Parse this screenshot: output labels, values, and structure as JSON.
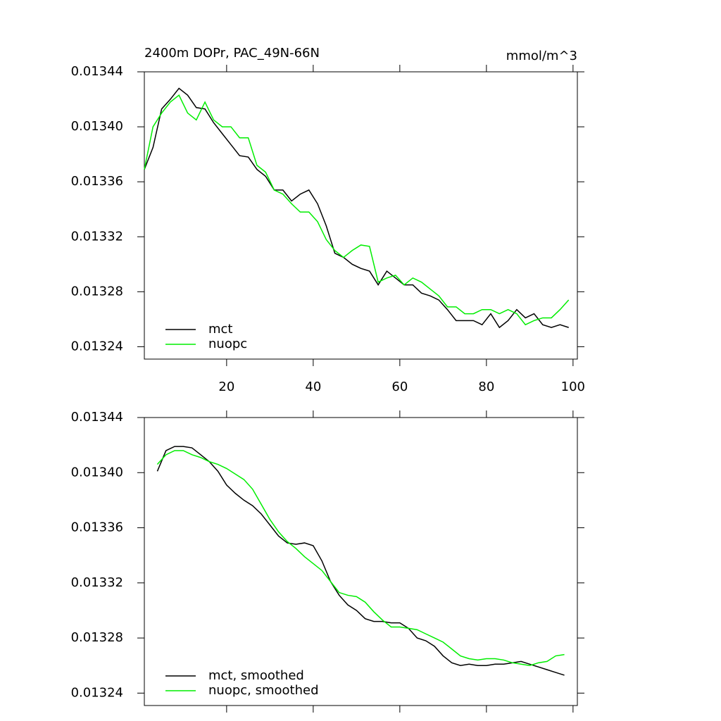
{
  "chart_data": [
    {
      "type": "line",
      "title": "2400m DOPr, PAC_49N-66N",
      "units": "mmol/m^3",
      "x": [
        1,
        3,
        5,
        7,
        9,
        11,
        13,
        15,
        17,
        19,
        21,
        23,
        25,
        27,
        29,
        31,
        33,
        35,
        37,
        39,
        41,
        43,
        45,
        47,
        49,
        51,
        53,
        55,
        57,
        59,
        61,
        63,
        65,
        67,
        69,
        71,
        73,
        75,
        77,
        79,
        81,
        83,
        85,
        87,
        89,
        91,
        93,
        95,
        97,
        99
      ],
      "series": [
        {
          "name": "mct",
          "color": "#000000",
          "values": [
            0.013369,
            0.013385,
            0.013413,
            0.01342,
            0.013428,
            0.013423,
            0.013414,
            0.013413,
            0.013403,
            0.013395,
            0.013387,
            0.013379,
            0.013378,
            0.013369,
            0.013364,
            0.013354,
            0.013354,
            0.013346,
            0.013351,
            0.013354,
            0.013344,
            0.013328,
            0.013308,
            0.013305,
            0.0133,
            0.013297,
            0.013295,
            0.013285,
            0.013295,
            0.01329,
            0.013285,
            0.013285,
            0.013279,
            0.013277,
            0.013274,
            0.013267,
            0.013259,
            0.013259,
            0.013259,
            0.013256,
            0.013264,
            0.013254,
            0.013259,
            0.013267,
            0.013261,
            0.013264,
            0.013256,
            0.013254,
            0.013256,
            0.013254
          ]
        },
        {
          "name": "nuopc",
          "color": "#00ee00",
          "values": [
            0.013369,
            0.0134,
            0.01341,
            0.013418,
            0.013423,
            0.01341,
            0.013405,
            0.013418,
            0.013405,
            0.0134,
            0.0134,
            0.013392,
            0.013392,
            0.013372,
            0.013367,
            0.013354,
            0.013351,
            0.013344,
            0.013338,
            0.013338,
            0.013331,
            0.013318,
            0.01331,
            0.013305,
            0.01331,
            0.013314,
            0.013313,
            0.013287,
            0.01329,
            0.013292,
            0.013285,
            0.01329,
            0.013287,
            0.013282,
            0.013277,
            0.013269,
            0.013269,
            0.013264,
            0.013264,
            0.013267,
            0.013267,
            0.013264,
            0.013267,
            0.013264,
            0.013256,
            0.013259,
            0.013261,
            0.013261,
            0.013267,
            0.013274
          ]
        }
      ],
      "xlim": [
        1,
        101
      ],
      "ylim": [
        0.013231,
        0.01344
      ],
      "xticks": [
        20,
        40,
        60,
        80,
        100
      ],
      "yticks": [
        {
          "value": 0.01324,
          "label": "0.01324"
        },
        {
          "value": 0.01328,
          "label": "0.01328"
        },
        {
          "value": 0.01332,
          "label": "0.01332"
        },
        {
          "value": 0.01336,
          "label": "0.01336"
        },
        {
          "value": 0.0134,
          "label": "0.01340"
        },
        {
          "value": 0.01344,
          "label": "0.01344"
        }
      ],
      "legend": "lower left"
    },
    {
      "type": "line",
      "x": [
        4,
        6,
        8,
        10,
        12,
        14,
        16,
        18,
        20,
        22,
        24,
        26,
        28,
        30,
        32,
        34,
        36,
        38,
        40,
        42,
        44,
        46,
        48,
        50,
        52,
        54,
        56,
        58,
        60,
        62,
        64,
        66,
        68,
        70,
        72,
        74,
        76,
        78,
        80,
        82,
        84,
        86,
        88,
        90,
        92,
        94,
        96,
        98
      ],
      "series": [
        {
          "name": "mct, smoothed",
          "color": "#000000",
          "values": [
            0.013401,
            0.013416,
            0.013419,
            0.013419,
            0.013418,
            0.013413,
            0.013408,
            0.013401,
            0.013391,
            0.013385,
            0.01338,
            0.013376,
            0.01337,
            0.013362,
            0.013354,
            0.013349,
            0.013348,
            0.013349,
            0.013347,
            0.013336,
            0.013321,
            0.013311,
            0.013304,
            0.0133,
            0.013294,
            0.013292,
            0.013292,
            0.013291,
            0.013291,
            0.013287,
            0.01328,
            0.013278,
            0.013274,
            0.013267,
            0.013262,
            0.01326,
            0.013261,
            0.01326,
            0.01326,
            0.013261,
            0.013261,
            0.013262,
            0.013263,
            0.013261,
            0.013259,
            0.013257,
            0.013255,
            0.013253
          ]
        },
        {
          "name": "nuopc, smoothed",
          "color": "#00ee00",
          "values": [
            0.013406,
            0.013413,
            0.013416,
            0.013416,
            0.013413,
            0.013411,
            0.013408,
            0.013406,
            0.013403,
            0.013399,
            0.013395,
            0.013388,
            0.013377,
            0.013366,
            0.013357,
            0.01335,
            0.013345,
            0.013339,
            0.013334,
            0.013329,
            0.013321,
            0.013313,
            0.013311,
            0.01331,
            0.013306,
            0.013299,
            0.013293,
            0.013288,
            0.013288,
            0.013287,
            0.013286,
            0.013283,
            0.01328,
            0.013277,
            0.013272,
            0.013267,
            0.013265,
            0.013264,
            0.013265,
            0.013265,
            0.013264,
            0.013262,
            0.013261,
            0.01326,
            0.013262,
            0.013263,
            0.013267,
            0.013268
          ]
        }
      ],
      "xlim": [
        1,
        101
      ],
      "ylim": [
        0.013231,
        0.01344
      ],
      "xticks": [
        20,
        40,
        60,
        80,
        100
      ],
      "yticks": [
        {
          "value": 0.01324,
          "label": "0.01324"
        },
        {
          "value": 0.01328,
          "label": "0.01328"
        },
        {
          "value": 0.01332,
          "label": "0.01332"
        },
        {
          "value": 0.01336,
          "label": "0.01336"
        },
        {
          "value": 0.0134,
          "label": "0.01340"
        },
        {
          "value": 0.01344,
          "label": "0.01344"
        }
      ],
      "legend": "lower left"
    }
  ]
}
